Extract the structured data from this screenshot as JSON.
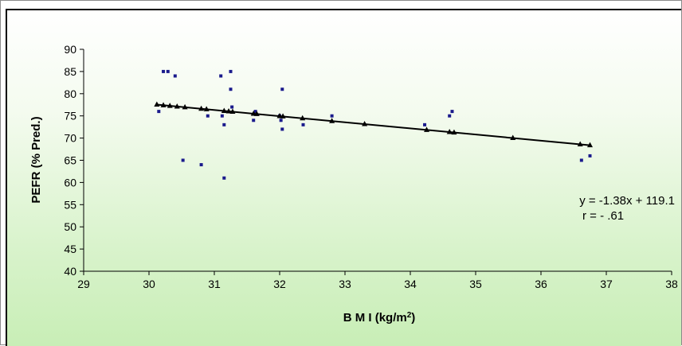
{
  "chart_data": {
    "type": "scatter",
    "xlabel": "B M I (kg/m²)",
    "ylabel": "PEFR (% Pred.)",
    "xlim": [
      29,
      38
    ],
    "ylim": [
      40,
      90
    ],
    "x_ticks": [
      "29",
      "30",
      "31",
      "32",
      "33",
      "34",
      "35",
      "36",
      "37",
      "38"
    ],
    "y_ticks": [
      "40",
      "45",
      "50",
      "55",
      "60",
      "65",
      "70",
      "75",
      "80",
      "85",
      "90"
    ],
    "grid": false,
    "points": [
      {
        "x": 30.15,
        "y": 76
      },
      {
        "x": 30.22,
        "y": 85
      },
      {
        "x": 30.29,
        "y": 85
      },
      {
        "x": 30.4,
        "y": 84
      },
      {
        "x": 30.52,
        "y": 65
      },
      {
        "x": 30.8,
        "y": 64
      },
      {
        "x": 30.9,
        "y": 75
      },
      {
        "x": 31.1,
        "y": 84
      },
      {
        "x": 31.12,
        "y": 75
      },
      {
        "x": 31.15,
        "y": 73
      },
      {
        "x": 31.15,
        "y": 61
      },
      {
        "x": 31.25,
        "y": 85
      },
      {
        "x": 31.25,
        "y": 81
      },
      {
        "x": 31.27,
        "y": 77
      },
      {
        "x": 31.6,
        "y": 74
      },
      {
        "x": 31.63,
        "y": 76
      },
      {
        "x": 32.0,
        "y": 75
      },
      {
        "x": 32.02,
        "y": 74
      },
      {
        "x": 32.04,
        "y": 72
      },
      {
        "x": 32.04,
        "y": 81
      },
      {
        "x": 32.36,
        "y": 73
      },
      {
        "x": 32.8,
        "y": 75
      },
      {
        "x": 34.22,
        "y": 73
      },
      {
        "x": 34.6,
        "y": 75
      },
      {
        "x": 34.64,
        "y": 76
      },
      {
        "x": 36.62,
        "y": 65
      },
      {
        "x": 36.75,
        "y": 66
      }
    ],
    "trendline": {
      "slope": -1.38,
      "intercept": 119.1,
      "x_markers": [
        30.12,
        30.22,
        30.32,
        30.43,
        30.55,
        30.8,
        30.88,
        31.15,
        31.22,
        31.28,
        31.6,
        31.65,
        32.0,
        32.05,
        32.35,
        32.8,
        33.3,
        34.25,
        34.6,
        34.67,
        35.57,
        36.6,
        36.75
      ]
    },
    "annotations": [
      "y = -1.38x + 119.1",
      "r = - .61"
    ],
    "colors": {
      "points": "#1a1a8c",
      "trendline": "#000000"
    }
  }
}
